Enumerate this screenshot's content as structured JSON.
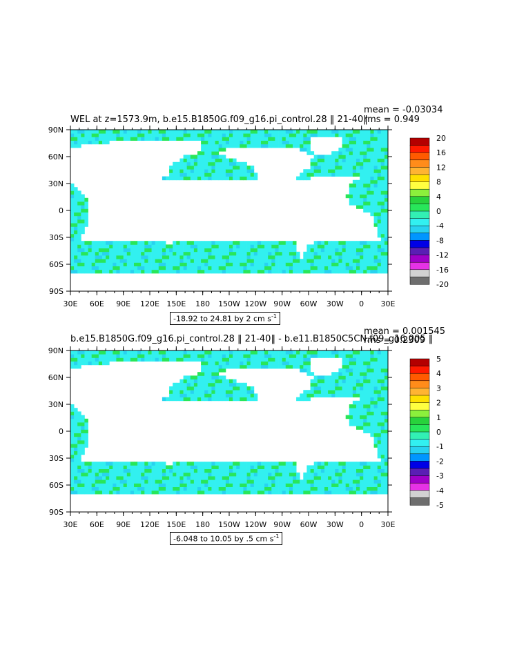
{
  "chart_data": [
    {
      "type": "heatmap",
      "title": "WEL at z=1573.9m, b.e15.B1850G.f09_g16.pi_control.28 ‖ 21-40‖",
      "stats": {
        "mean": "mean = -0.03034",
        "rms": "rms = 0.949"
      },
      "range_label": "-18.92 to 24.81 by 2 cm s",
      "range_unit_exp": "-1",
      "xticks": [
        "30E",
        "60E",
        "90E",
        "120E",
        "150E",
        "180",
        "150W",
        "120W",
        "90W",
        "60W",
        "30W",
        "0",
        "30E"
      ],
      "yticks": [
        "90N",
        "60N",
        "30N",
        "0",
        "30S",
        "60S",
        "90S"
      ],
      "xlim": [
        30,
        390
      ],
      "ylim": [
        -90,
        90
      ],
      "colorbar": {
        "labels": [
          "20",
          "16",
          "12",
          "8",
          "4",
          "0",
          "-4",
          "-8",
          "-12",
          "-16",
          "-20"
        ],
        "colors": [
          "#b40000",
          "#ff1a00",
          "#ff5a00",
          "#ff8c1a",
          "#ffb432",
          "#ffe000",
          "#ffff40",
          "#8cf03c",
          "#28d23c",
          "#28e65a",
          "#32f0b4",
          "#32f0f0",
          "#28d2f0",
          "#0096ff",
          "#0000e6",
          "#5a1eb4",
          "#a000c8",
          "#e632e6",
          "#d2d2d2",
          "#6e6e6e"
        ]
      }
    },
    {
      "type": "heatmap",
      "title": "b.e15.B1850G.f09_g16.pi_control.28 ‖ 21-40‖ - b.e11.B1850C5CN.f09_g16.005 ‖",
      "stats": {
        "mean": "mean = 0.001545",
        "rms": "rms = 0.2309"
      },
      "range_label": "-6.048 to 10.05 by .5 cm s",
      "range_unit_exp": "-1",
      "xticks": [
        "30E",
        "60E",
        "90E",
        "120E",
        "150E",
        "180",
        "150W",
        "120W",
        "90W",
        "60W",
        "30W",
        "0",
        "30E"
      ],
      "yticks": [
        "90N",
        "60N",
        "30N",
        "0",
        "30S",
        "60S",
        "90S"
      ],
      "xlim": [
        30,
        390
      ],
      "ylim": [
        -90,
        90
      ],
      "colorbar": {
        "labels": [
          "5",
          "4",
          "3",
          "2",
          "1",
          "0",
          "-1",
          "-2",
          "-3",
          "-4",
          "-5"
        ],
        "colors": [
          "#b40000",
          "#ff1a00",
          "#ff5a00",
          "#ff8c1a",
          "#ffb432",
          "#ffe000",
          "#ffff40",
          "#8cf03c",
          "#28d23c",
          "#28e65a",
          "#32f0b4",
          "#32f0f0",
          "#28d2f0",
          "#0096ff",
          "#0000e6",
          "#5a1eb4",
          "#a000c8",
          "#e632e6",
          "#d2d2d2",
          "#6e6e6e"
        ]
      }
    }
  ]
}
